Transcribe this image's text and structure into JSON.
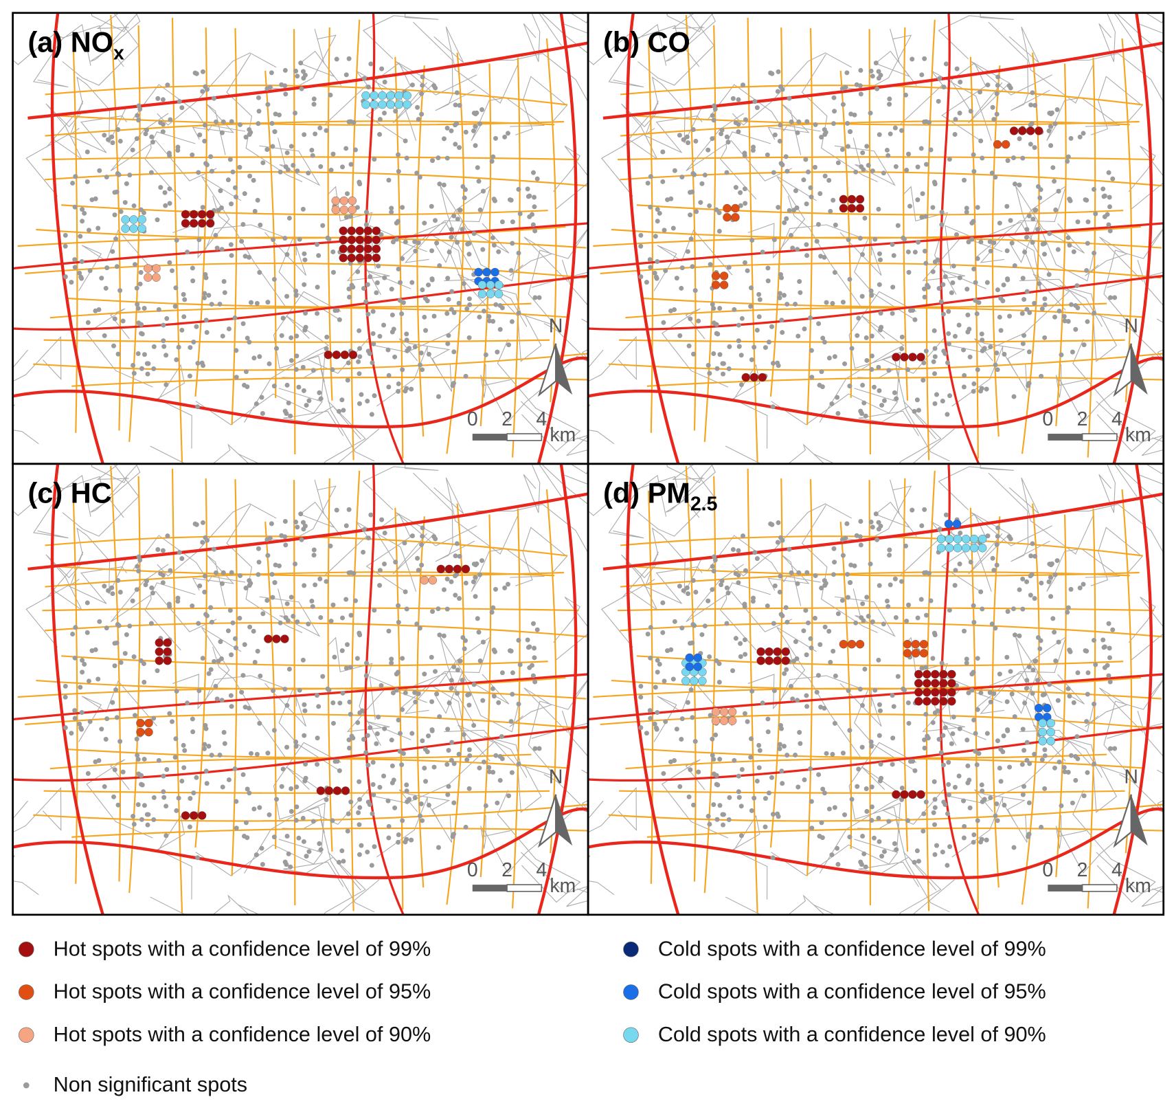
{
  "panels": [
    {
      "title": "(a) NO",
      "subscript": "x"
    },
    {
      "title": "(b) CO"
    },
    {
      "title": "(c) HC"
    },
    {
      "title": "(d) PM",
      "subscript": "2.5"
    }
  ],
  "north": "N",
  "scale_bar": {
    "ticks": [
      "0",
      "2",
      "4"
    ],
    "unit": "km"
  },
  "legend": [
    {
      "label": "Hot spots with a confidence level of 99%",
      "color": "#a50f0f"
    },
    {
      "label": "Hot spots with a confidence level of 95%",
      "color": "#e04e14"
    },
    {
      "label": "Hot spots with a confidence level of 90%",
      "color": "#f5a582"
    },
    {
      "label": "Non significant spots",
      "color": "#9b9b9b"
    },
    {
      "label": "Cold spots with a confidence level of 99%",
      "color": "#0a2a78"
    },
    {
      "label": "Cold spots with a confidence level of 95%",
      "color": "#1a6ee8"
    },
    {
      "label": "Cold spots with a confidence level of 90%",
      "color": "#78d8f0"
    }
  ]
}
